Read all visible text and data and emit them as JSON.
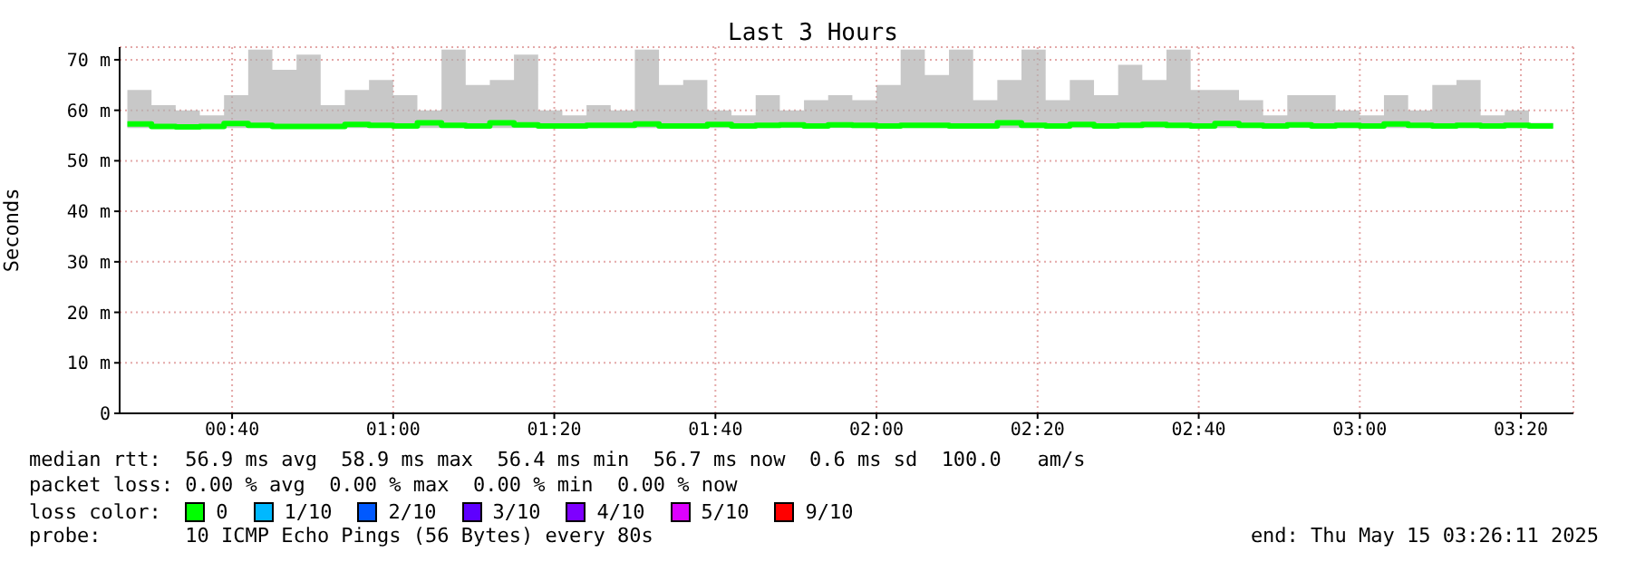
{
  "chart_data": {
    "type": "step",
    "title": "Last 3 Hours",
    "ylabel": "Seconds",
    "x": [
      0.45,
      0.5,
      0.55,
      0.6,
      0.65,
      0.7,
      0.75,
      0.8,
      0.85,
      0.9,
      0.95,
      1.0,
      1.05,
      1.1,
      1.15,
      1.2,
      1.25,
      1.3,
      1.35,
      1.4,
      1.45,
      1.5,
      1.55,
      1.6,
      1.65,
      1.7,
      1.75,
      1.8,
      1.85,
      1.9,
      1.95,
      2.0,
      2.05,
      2.1,
      2.15,
      2.2,
      2.25,
      2.3,
      2.35,
      2.4,
      2.45,
      2.5,
      2.55,
      2.6,
      2.65,
      2.7,
      2.75,
      2.8,
      2.85,
      2.9,
      2.95,
      3.0,
      3.05,
      3.1,
      3.15,
      3.2,
      3.25,
      3.3,
      3.35,
      3.4
    ],
    "series": [
      {
        "name": "0",
        "color": "#00ff00",
        "values": [
          57.3,
          56.8,
          56.7,
          56.8,
          57.4,
          57,
          56.8,
          56.8,
          56.8,
          57.2,
          57,
          56.9,
          57.5,
          57,
          56.9,
          57.5,
          57.1,
          56.9,
          56.9,
          57,
          57,
          57.3,
          56.9,
          56.9,
          57.2,
          56.9,
          57,
          57.1,
          56.9,
          57.1,
          57,
          56.9,
          57,
          57,
          56.9,
          56.9,
          57.5,
          57,
          56.9,
          57.2,
          56.9,
          57,
          57.2,
          57,
          56.9,
          57.4,
          57,
          56.9,
          57.1,
          56.9,
          57,
          56.9,
          57.3,
          57,
          56.9,
          57,
          56.9,
          57,
          56.9,
          56.9
        ],
        "lower": [
          56.5,
          56.5,
          56.5,
          56.5,
          56.5,
          56.5,
          56.5,
          56.5,
          56.5,
          56.5,
          56.5,
          56.5,
          56.5,
          56.5,
          56.5,
          56.5,
          56.5,
          56.5,
          56.5,
          56.5,
          56.5,
          56.5,
          56.5,
          56.5,
          56.5,
          56.5,
          56.5,
          56.5,
          56.5,
          56.5,
          56.5,
          56.5,
          56.5,
          56.5,
          56.5,
          56.5,
          56.5,
          56.5,
          56.5,
          56.5,
          56.5,
          56.5,
          56.5,
          56.5,
          56.5,
          56.5,
          56.5,
          56.5,
          56.5,
          56.5,
          56.5,
          56.5,
          56.5,
          56.5,
          56.5,
          56.5,
          56.5,
          56.5,
          56.5,
          56.5
        ],
        "upper": [
          64,
          61,
          60,
          59,
          63,
          72,
          68,
          71,
          61,
          64,
          66,
          63,
          60,
          72,
          65,
          66,
          71,
          60,
          59,
          61,
          60,
          72,
          65,
          66,
          60,
          59,
          63,
          60,
          62,
          63,
          62,
          65,
          72,
          67,
          72,
          62,
          66,
          72,
          62,
          66,
          63,
          69,
          66,
          72,
          64,
          64,
          62,
          59,
          63,
          63,
          60,
          59,
          63,
          60,
          65,
          66,
          59,
          60,
          57.5,
          59
        ]
      },
      {
        "name": "1/10",
        "color": "#00b8ff",
        "values": [
          null,
          null,
          null,
          null,
          null,
          null,
          null,
          null,
          null,
          null,
          null,
          null,
          null,
          null,
          null,
          null,
          null,
          null,
          null,
          null,
          null,
          null,
          null,
          null,
          null,
          null,
          null,
          null,
          null,
          null,
          null,
          null,
          null,
          null,
          null,
          null,
          null,
          null,
          null,
          null,
          null,
          null,
          null,
          null,
          null,
          null,
          null,
          null,
          null,
          null,
          null,
          null,
          null,
          null,
          null,
          null,
          null,
          null,
          null,
          null
        ]
      },
      {
        "name": "2/10",
        "color": "#0059ff",
        "values": [
          null,
          null,
          null,
          null,
          null,
          null,
          null,
          null,
          null,
          null,
          null,
          null,
          null,
          null,
          null,
          null,
          null,
          null,
          null,
          null,
          null,
          null,
          null,
          null,
          null,
          null,
          null,
          null,
          null,
          null,
          null,
          null,
          null,
          null,
          null,
          null,
          null,
          null,
          null,
          null,
          null,
          null,
          null,
          null,
          null,
          null,
          null,
          null,
          null,
          null,
          null,
          null,
          null,
          null,
          null,
          null,
          null,
          null,
          null,
          null
        ]
      },
      {
        "name": "3/10",
        "color": "#5e00ff",
        "values": [
          null,
          null,
          null,
          null,
          null,
          null,
          null,
          null,
          null,
          null,
          null,
          null,
          null,
          null,
          null,
          null,
          null,
          null,
          null,
          null,
          null,
          null,
          null,
          null,
          null,
          null,
          null,
          null,
          null,
          null,
          null,
          null,
          null,
          null,
          null,
          null,
          null,
          null,
          null,
          null,
          null,
          null,
          null,
          null,
          null,
          null,
          null,
          null,
          null,
          null,
          null,
          null,
          null,
          null,
          null,
          null,
          null,
          null,
          null,
          null
        ]
      },
      {
        "name": "4/10",
        "color": "#7e00ff",
        "values": [
          null,
          null,
          null,
          null,
          null,
          null,
          null,
          null,
          null,
          null,
          null,
          null,
          null,
          null,
          null,
          null,
          null,
          null,
          null,
          null,
          null,
          null,
          null,
          null,
          null,
          null,
          null,
          null,
          null,
          null,
          null,
          null,
          null,
          null,
          null,
          null,
          null,
          null,
          null,
          null,
          null,
          null,
          null,
          null,
          null,
          null,
          null,
          null,
          null,
          null,
          null,
          null,
          null,
          null,
          null,
          null,
          null,
          null,
          null,
          null
        ]
      },
      {
        "name": "5/10",
        "color": "#dd00ff",
        "values": [
          null,
          null,
          null,
          null,
          null,
          null,
          null,
          null,
          null,
          null,
          null,
          null,
          null,
          null,
          null,
          null,
          null,
          null,
          null,
          null,
          null,
          null,
          null,
          null,
          null,
          null,
          null,
          null,
          null,
          null,
          null,
          null,
          null,
          null,
          null,
          null,
          null,
          null,
          null,
          null,
          null,
          null,
          null,
          null,
          null,
          null,
          null,
          null,
          null,
          null,
          null,
          null,
          null,
          null,
          null,
          null,
          null,
          null,
          null,
          null
        ]
      },
      {
        "name": "9/10",
        "color": "#ff0000",
        "values": [
          null,
          null,
          null,
          null,
          null,
          null,
          null,
          null,
          null,
          null,
          null,
          null,
          null,
          null,
          null,
          null,
          null,
          null,
          null,
          null,
          null,
          null,
          null,
          null,
          null,
          null,
          null,
          null,
          null,
          null,
          null,
          null,
          null,
          null,
          null,
          null,
          null,
          null,
          null,
          null,
          null,
          null,
          null,
          null,
          null,
          null,
          null,
          null,
          null,
          null,
          null,
          null,
          null,
          null,
          null,
          null,
          null,
          null,
          null,
          null
        ]
      }
    ],
    "legend": "bottom",
    "legend_title": "loss color:",
    "xlim": [
      0.434,
      3.442
    ],
    "xticks": [
      {
        "value": 0.6667,
        "label": "00:40"
      },
      {
        "value": 1,
        "label": "01:00"
      },
      {
        "value": 1.3333,
        "label": "01:20"
      },
      {
        "value": 1.6667,
        "label": "01:40"
      },
      {
        "value": 2,
        "label": "02:00"
      },
      {
        "value": 2.3333,
        "label": "02:20"
      },
      {
        "value": 2.6667,
        "label": "02:40"
      },
      {
        "value": 3,
        "label": "03:00"
      },
      {
        "value": 3.3333,
        "label": "03:20"
      }
    ],
    "ylim": [
      0,
      72.5
    ],
    "yticks": [
      0,
      {
        "value": 10,
        "label": "10 m"
      },
      {
        "value": 20,
        "label": "20 m"
      },
      {
        "value": 30,
        "label": "30 m"
      },
      {
        "value": 40,
        "label": "40 m"
      },
      {
        "value": 50,
        "label": "50 m"
      },
      {
        "value": 60,
        "label": "60 m"
      },
      {
        "value": 70,
        "label": "70 m"
      }
    ],
    "grid": true,
    "annotations": [
      "median rtt:  56.9 ms avg  58.9 ms max  56.4 ms min  56.7 ms now  0.6 ms sd  100.0   am/s",
      "packet loss: 0.00 % avg  0.00 % max  0.00 % min  0.00 % now",
      "probe:       10 ICMP Echo Pings (56 Bytes) every 80s",
      "end: Thu May 15 03:26:11 2025"
    ]
  }
}
